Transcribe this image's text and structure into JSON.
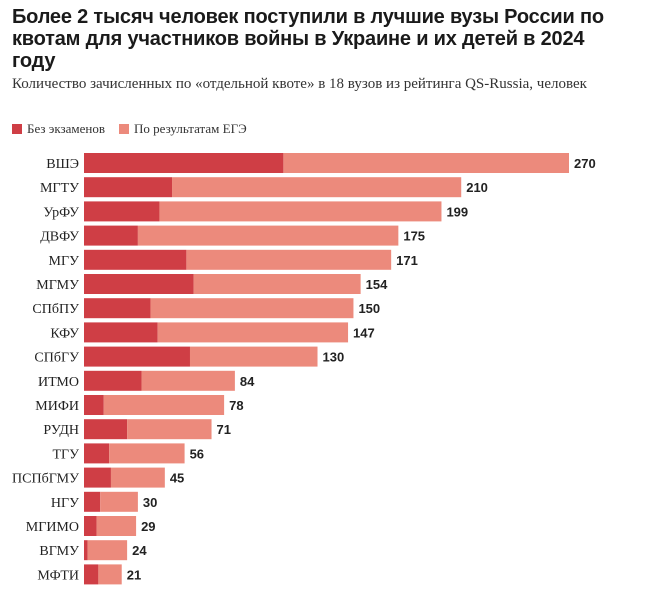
{
  "header": {
    "title": "Более 2 тысяч человек поступили в лучшие вузы России по квотам для участников войны в Украине и их детей в 2024 году",
    "subtitle": "Количество зачисленных по «отдельной квоте» в 18 вузов из рейтинга QS-Russia, человек"
  },
  "colors": {
    "no_exams": "#cf3e45",
    "ege": "#ec8a7c"
  },
  "chart_data": {
    "type": "bar",
    "orientation": "horizontal",
    "stacked": true,
    "title": "Более 2 тысяч человек поступили в лучшие вузы России по квотам для участников войны в Украине и их детей в 2024 году",
    "subtitle": "Количество зачисленных по «отдельной квоте» в 18 вузов из рейтинга QS-Russia, человек",
    "legend_position": "top-left",
    "grid": false,
    "xlim": [
      0,
      270
    ],
    "categories": [
      "ВШЭ",
      "МГТУ",
      "УрФУ",
      "ДВФУ",
      "МГУ",
      "МГМУ",
      "СПбПУ",
      "КФУ",
      "СПбГУ",
      "ИТМО",
      "МИФИ",
      "РУДН",
      "ТГУ",
      "ПСПбГМУ",
      "НГУ",
      "МГИМО",
      "ВГМУ",
      "МФТИ"
    ],
    "totals": [
      270,
      210,
      199,
      175,
      171,
      154,
      150,
      147,
      130,
      84,
      78,
      71,
      56,
      45,
      30,
      29,
      24,
      21
    ],
    "series": [
      {
        "name": "Без экзаменов",
        "values": [
          111,
          49,
          42,
          30,
          57,
          61,
          37,
          41,
          59,
          32,
          11,
          24,
          14,
          15,
          9,
          7,
          2,
          8
        ]
      },
      {
        "name": "По результатам ЕГЭ",
        "values": [
          159,
          161,
          157,
          145,
          114,
          93,
          113,
          106,
          71,
          52,
          67,
          47,
          42,
          30,
          21,
          22,
          22,
          13
        ]
      }
    ]
  }
}
